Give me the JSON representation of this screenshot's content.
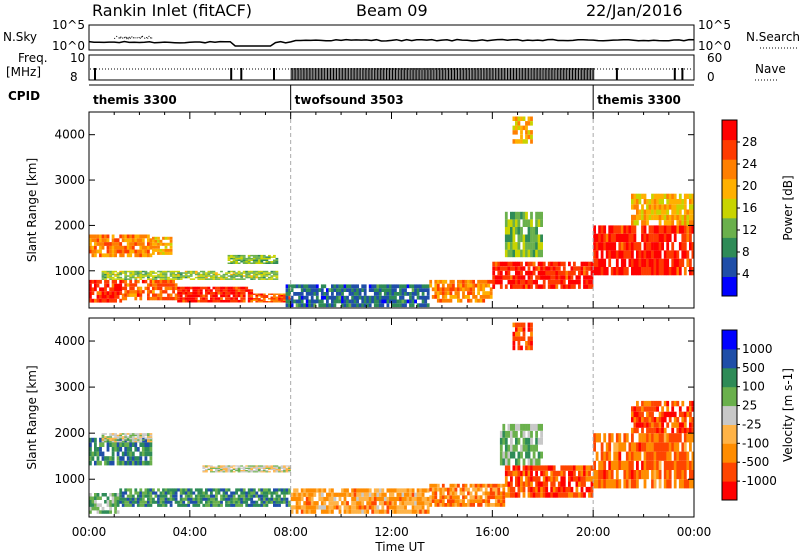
{
  "header": {
    "station": "Rankin Inlet (fitACF)",
    "beam": "Beam 09",
    "date": "22/Jan/2016"
  },
  "noise_panel": {
    "left_label": "N.Sky",
    "left_ticks": [
      "10^5",
      "10^0"
    ],
    "right_ticks": [
      "10^5",
      "10^0"
    ],
    "right_label": "N.Search"
  },
  "freq_panel": {
    "left_label_1": "Freq.",
    "left_label_2": "[MHz]",
    "left_ticks": [
      "10",
      "8"
    ],
    "right_ticks": [
      "60",
      "0"
    ],
    "right_label": "Nave"
  },
  "cpid_panel": {
    "label": "CPID",
    "segments": [
      {
        "name": "themis 3300",
        "start": 0,
        "end": 8
      },
      {
        "name": "twofsound 3503",
        "start": 8,
        "end": 20
      },
      {
        "name": "themis 3300",
        "start": 20,
        "end": 24
      }
    ]
  },
  "colors": {
    "power": [
      "#0000ff",
      "#1f4ea8",
      "#2e8b57",
      "#6ab04c",
      "#c8d400",
      "#ffb000",
      "#ff7f00",
      "#ff3b00",
      "#ff0000"
    ],
    "velocity": [
      "#ff0000",
      "#ff4500",
      "#ff8c00",
      "#ffb347",
      "#c8c8c8",
      "#6ab04c",
      "#2e8b57",
      "#1f4ea8",
      "#0000ff"
    ]
  },
  "chart_data": [
    {
      "type": "heatmap",
      "title": "",
      "ylabel": "Slant Range [km]",
      "xlabel": "",
      "ylim": [
        180,
        4500
      ],
      "xlim": [
        0,
        24
      ],
      "x_ticks": [
        "00:00",
        "04:00",
        "08:00",
        "12:00",
        "16:00",
        "20:00",
        "00:00"
      ],
      "y_ticks": [
        1000,
        2000,
        3000,
        4000
      ],
      "colorbar": {
        "label": "Power [dB]",
        "ticks": [
          "4",
          "8",
          "12",
          "16",
          "20",
          "24",
          "28"
        ]
      },
      "regions": [
        {
          "t0": 0.0,
          "t1": 1.3,
          "r0": 300,
          "r1": 800,
          "level": 7.5
        },
        {
          "t0": 1.3,
          "t1": 3.5,
          "r0": 350,
          "r1": 800,
          "level": 6.5
        },
        {
          "t0": 3.5,
          "t1": 6.5,
          "r0": 300,
          "r1": 650,
          "level": 7.5
        },
        {
          "t0": 6.5,
          "t1": 8.0,
          "r0": 300,
          "r1": 500,
          "level": 6.5
        },
        {
          "t0": 0.0,
          "t1": 2.5,
          "r0": 1300,
          "r1": 1800,
          "level": 6
        },
        {
          "t0": 2.5,
          "t1": 3.3,
          "r0": 1350,
          "r1": 1750,
          "level": 5
        },
        {
          "t0": 0.5,
          "t1": 7.5,
          "r0": 800,
          "r1": 1000,
          "level": 3.5
        },
        {
          "t0": 5.5,
          "t1": 7.5,
          "r0": 1150,
          "r1": 1350,
          "level": 3
        },
        {
          "t0": 7.8,
          "t1": 13.5,
          "r0": 200,
          "r1": 700,
          "level": 1.5
        },
        {
          "t0": 13.5,
          "t1": 16.0,
          "r0": 300,
          "r1": 800,
          "level": 6
        },
        {
          "t0": 16.0,
          "t1": 20.0,
          "r0": 600,
          "r1": 1200,
          "level": 7.5
        },
        {
          "t0": 16.5,
          "t1": 18.0,
          "r0": 1300,
          "r1": 2300,
          "level": 3
        },
        {
          "t0": 20.0,
          "t1": 24.0,
          "r0": 900,
          "r1": 2000,
          "level": 7.5
        },
        {
          "t0": 21.5,
          "t1": 24.0,
          "r0": 2000,
          "r1": 2700,
          "level": 5
        },
        {
          "t0": 16.8,
          "t1": 17.6,
          "r0": 3800,
          "r1": 4400,
          "level": 5
        }
      ]
    },
    {
      "type": "heatmap",
      "title": "",
      "ylabel": "Slant Range [km]",
      "xlabel": "Time UT",
      "ylim": [
        180,
        4500
      ],
      "xlim": [
        0,
        24
      ],
      "x_ticks": [
        "00:00",
        "04:00",
        "08:00",
        "12:00",
        "16:00",
        "20:00",
        "00:00"
      ],
      "y_ticks": [
        1000,
        2000,
        3000,
        4000
      ],
      "colorbar": {
        "label": "Velocity [m s-1]",
        "ticks": [
          "-1000",
          "-500",
          "-100",
          "-25",
          "25",
          "100",
          "500",
          "1000"
        ]
      },
      "regions": [
        {
          "t0": 0.0,
          "t1": 1.2,
          "r0": 250,
          "r1": 700,
          "level": 5
        },
        {
          "t0": 1.2,
          "t1": 8.0,
          "r0": 400,
          "r1": 800,
          "level": 6
        },
        {
          "t0": 0.0,
          "t1": 2.5,
          "r0": 1300,
          "r1": 1900,
          "level": 6
        },
        {
          "t0": 0.5,
          "t1": 2.5,
          "r0": 1800,
          "r1": 2000,
          "level": 4
        },
        {
          "t0": 4.5,
          "t1": 8.0,
          "r0": 1150,
          "r1": 1300,
          "level": 4
        },
        {
          "t0": 8.0,
          "t1": 13.5,
          "r0": 250,
          "r1": 800,
          "level": 2.5
        },
        {
          "t0": 13.5,
          "t1": 16.5,
          "r0": 400,
          "r1": 900,
          "level": 2
        },
        {
          "t0": 16.5,
          "t1": 20.0,
          "r0": 600,
          "r1": 1300,
          "level": 1
        },
        {
          "t0": 16.3,
          "t1": 18.0,
          "r0": 1300,
          "r1": 2200,
          "level": 5
        },
        {
          "t0": 20.0,
          "t1": 24.0,
          "r0": 800,
          "r1": 2000,
          "level": 1.5
        },
        {
          "t0": 21.5,
          "t1": 24.0,
          "r0": 2000,
          "r1": 2700,
          "level": 1
        },
        {
          "t0": 16.8,
          "t1": 17.6,
          "r0": 3800,
          "r1": 4400,
          "level": 1
        }
      ]
    }
  ]
}
